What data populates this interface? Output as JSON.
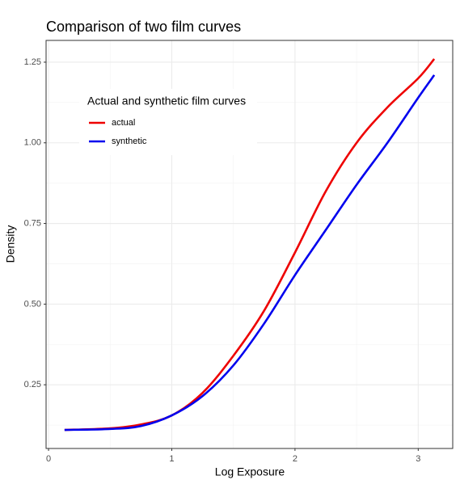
{
  "chart_data": {
    "type": "line",
    "title": "Comparison of two film curves",
    "xlabel": "Log Exposure",
    "ylabel": "Density",
    "x": [
      0.13,
      0.5,
      0.75,
      1.0,
      1.25,
      1.5,
      1.75,
      2.0,
      2.25,
      2.5,
      2.75,
      3.0,
      3.13
    ],
    "series": [
      {
        "name": "actual",
        "color": "#ee0000",
        "values": [
          0.11,
          0.115,
          0.127,
          0.155,
          0.225,
          0.34,
          0.48,
          0.66,
          0.85,
          1.0,
          1.11,
          1.2,
          1.26
        ]
      },
      {
        "name": "synthetic",
        "color": "#0000ee",
        "values": [
          0.11,
          0.113,
          0.122,
          0.155,
          0.215,
          0.31,
          0.44,
          0.59,
          0.73,
          0.87,
          1.0,
          1.14,
          1.21
        ]
      }
    ],
    "legend_title": "Actual and synthetic film curves",
    "legend": "top-left",
    "xlim": [
      -0.02,
      3.28
    ],
    "ylim": [
      0.0525,
      1.3175
    ],
    "xticks": [
      0,
      1,
      2,
      3
    ],
    "yticks": [
      0.25,
      {
        "value": 0.5,
        "label": "0.50"
      },
      0.75,
      {
        "value": 1.0,
        "label": "1.00"
      },
      1.25
    ],
    "grid": true,
    "minor_grid": true
  }
}
